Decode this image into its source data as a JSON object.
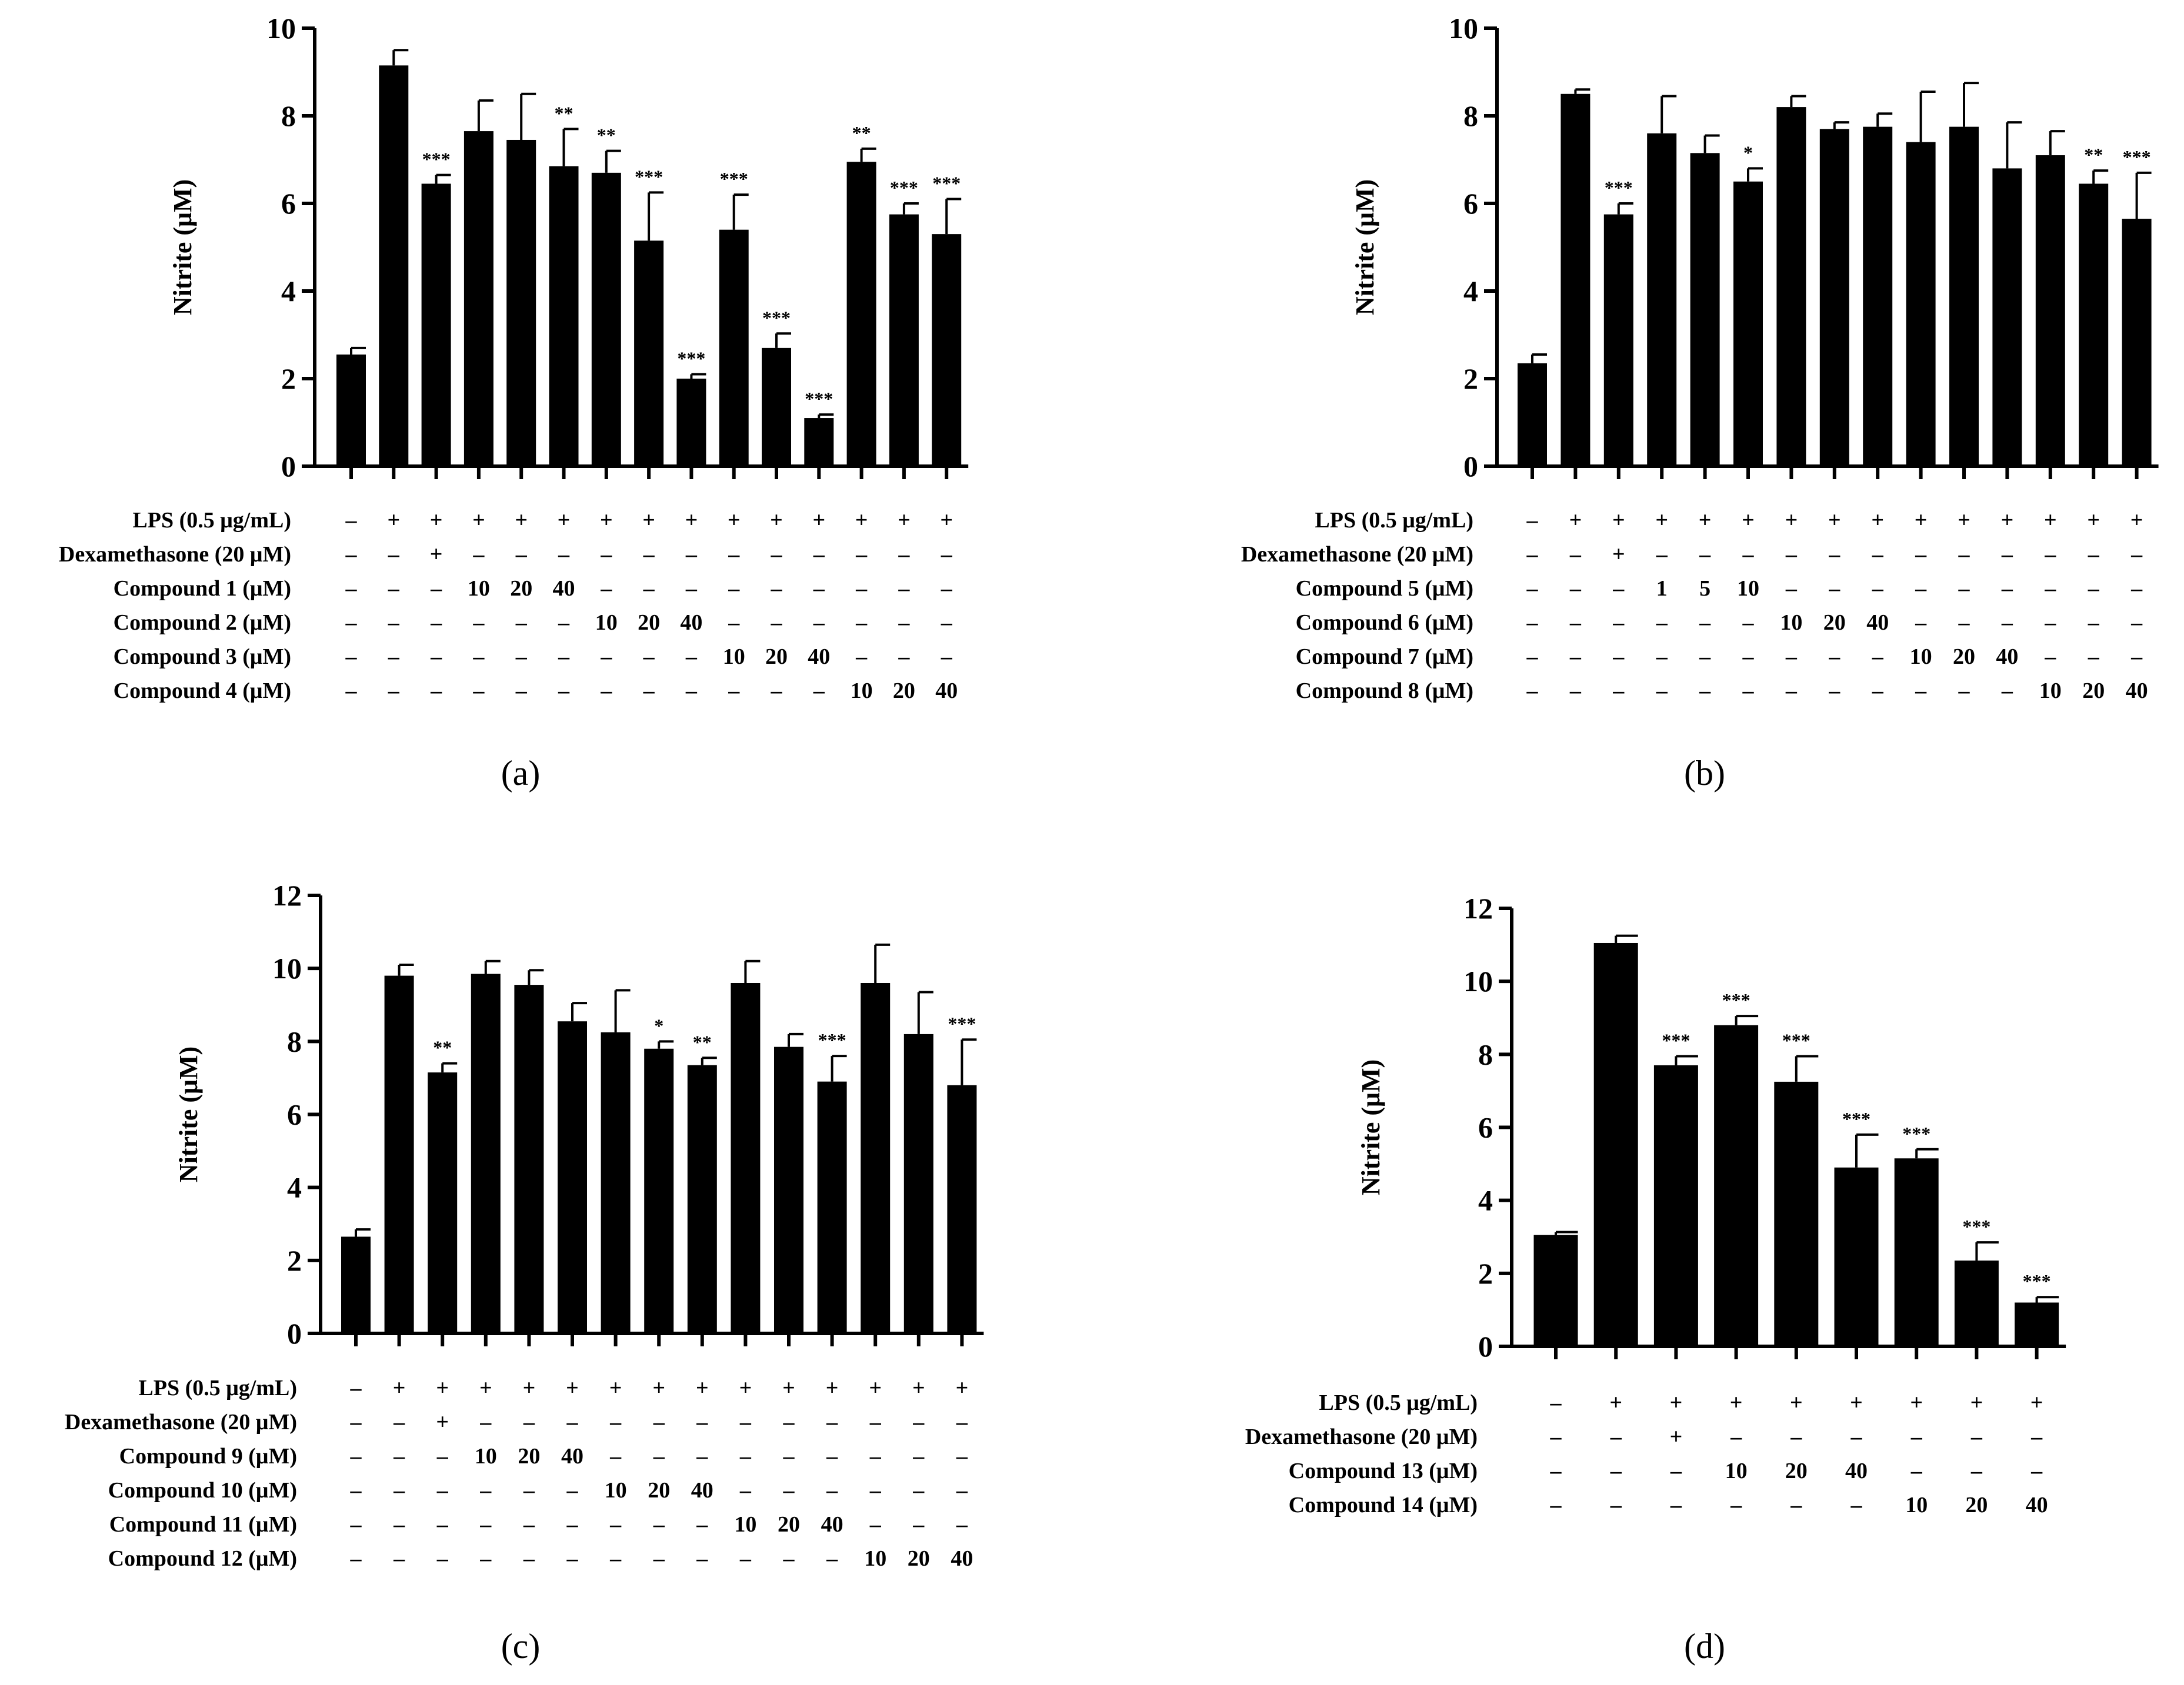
{
  "chart_data": [
    {
      "type": "bar",
      "panel_label": "(a)",
      "ylabel": "Nitrite (μM)",
      "ylim": [
        0,
        10
      ],
      "yticks": [
        "0",
        "2",
        "4",
        "6",
        "8",
        "10"
      ],
      "values": [
        2.55,
        9.15,
        6.45,
        7.65,
        7.45,
        6.85,
        6.7,
        5.15,
        2.0,
        5.4,
        2.7,
        1.1,
        6.95,
        5.75,
        5.3
      ],
      "errors": [
        0.15,
        0.35,
        0.2,
        0.7,
        1.05,
        0.85,
        0.5,
        1.1,
        0.1,
        0.8,
        0.33,
        0.08,
        0.3,
        0.25,
        0.8
      ],
      "significance": [
        "",
        "",
        "***",
        "",
        "",
        "**",
        "**",
        "***",
        "***",
        "***",
        "***",
        "***",
        "**",
        "***",
        "***"
      ],
      "rows": [
        {
          "label": "LPS (0.5 μg/mL)",
          "cells": [
            "–",
            "+",
            "+",
            "+",
            "+",
            "+",
            "+",
            "+",
            "+",
            "+",
            "+",
            "+",
            "+",
            "+",
            "+"
          ]
        },
        {
          "label": "Dexamethasone (20 μM)",
          "cells": [
            "–",
            "–",
            "+",
            "–",
            "–",
            "–",
            "–",
            "–",
            "–",
            "–",
            "–",
            "–",
            "–",
            "–",
            "–"
          ]
        },
        {
          "label": "Compound 1 (μM)",
          "cells": [
            "–",
            "–",
            "–",
            "10",
            "20",
            "40",
            "–",
            "–",
            "–",
            "–",
            "–",
            "–",
            "–",
            "–",
            "–"
          ]
        },
        {
          "label": "Compound 2 (μM)",
          "cells": [
            "–",
            "–",
            "–",
            "–",
            "–",
            "–",
            "10",
            "20",
            "40",
            "–",
            "–",
            "–",
            "–",
            "–",
            "–"
          ]
        },
        {
          "label": "Compound 3 (μM)",
          "cells": [
            "–",
            "–",
            "–",
            "–",
            "–",
            "–",
            "–",
            "–",
            "–",
            "10",
            "20",
            "40",
            "–",
            "–",
            "–"
          ]
        },
        {
          "label": "Compound 4 (μM)",
          "cells": [
            "–",
            "–",
            "–",
            "–",
            "–",
            "–",
            "–",
            "–",
            "–",
            "–",
            "–",
            "–",
            "10",
            "20",
            "40"
          ]
        }
      ]
    },
    {
      "type": "bar",
      "panel_label": "(b)",
      "ylabel": "Nitrite (μM)",
      "ylim": [
        0,
        10
      ],
      "yticks": [
        "0",
        "2",
        "4",
        "6",
        "8",
        "10"
      ],
      "values": [
        2.35,
        8.5,
        5.75,
        7.6,
        7.15,
        6.5,
        8.2,
        7.7,
        7.75,
        7.4,
        7.75,
        6.8,
        7.1,
        6.45,
        5.65
      ],
      "errors": [
        0.2,
        0.1,
        0.25,
        0.85,
        0.4,
        0.3,
        0.25,
        0.15,
        0.3,
        1.15,
        1.0,
        1.05,
        0.55,
        0.3,
        1.05
      ],
      "significance": [
        "",
        "",
        "***",
        "",
        "",
        "*",
        "",
        "",
        "",
        "",
        "",
        "",
        "",
        "**",
        "***"
      ],
      "rows": [
        {
          "label": "LPS (0.5 μg/mL)",
          "cells": [
            "–",
            "+",
            "+",
            "+",
            "+",
            "+",
            "+",
            "+",
            "+",
            "+",
            "+",
            "+",
            "+",
            "+",
            "+"
          ]
        },
        {
          "label": "Dexamethasone (20 μM)",
          "cells": [
            "–",
            "–",
            "+",
            "–",
            "–",
            "–",
            "–",
            "–",
            "–",
            "–",
            "–",
            "–",
            "–",
            "–",
            "–"
          ]
        },
        {
          "label": "Compound 5 (μM)",
          "cells": [
            "–",
            "–",
            "–",
            "1",
            "5",
            "10",
            "–",
            "–",
            "–",
            "–",
            "–",
            "–",
            "–",
            "–",
            "–"
          ]
        },
        {
          "label": "Compound 6 (μM)",
          "cells": [
            "–",
            "–",
            "–",
            "–",
            "–",
            "–",
            "10",
            "20",
            "40",
            "–",
            "–",
            "–",
            "–",
            "–",
            "–"
          ]
        },
        {
          "label": "Compound 7 (μM)",
          "cells": [
            "–",
            "–",
            "–",
            "–",
            "–",
            "–",
            "–",
            "–",
            "–",
            "10",
            "20",
            "40",
            "–",
            "–",
            "–"
          ]
        },
        {
          "label": "Compound 8 (μM)",
          "cells": [
            "–",
            "–",
            "–",
            "–",
            "–",
            "–",
            "–",
            "–",
            "–",
            "–",
            "–",
            "–",
            "10",
            "20",
            "40"
          ]
        }
      ]
    },
    {
      "type": "bar",
      "panel_label": "(c)",
      "ylabel": "Nitrite (μM)",
      "ylim": [
        0,
        12
      ],
      "yticks": [
        "0",
        "2",
        "4",
        "6",
        "8",
        "10",
        "12"
      ],
      "values": [
        2.65,
        9.8,
        7.15,
        9.85,
        9.55,
        8.55,
        8.25,
        7.8,
        7.35,
        9.6,
        7.85,
        6.9,
        9.6,
        8.2,
        6.8
      ],
      "errors": [
        0.2,
        0.3,
        0.25,
        0.35,
        0.4,
        0.5,
        1.15,
        0.2,
        0.2,
        0.6,
        0.35,
        0.7,
        1.05,
        1.15,
        1.25
      ],
      "significance": [
        "",
        "",
        "**",
        "",
        "",
        "",
        "",
        "*",
        "**",
        "",
        "",
        "***",
        "",
        "",
        "***"
      ],
      "rows": [
        {
          "label": "LPS (0.5 μg/mL)",
          "cells": [
            "–",
            "+",
            "+",
            "+",
            "+",
            "+",
            "+",
            "+",
            "+",
            "+",
            "+",
            "+",
            "+",
            "+",
            "+"
          ]
        },
        {
          "label": "Dexamethasone (20 μM)",
          "cells": [
            "–",
            "–",
            "+",
            "–",
            "–",
            "–",
            "–",
            "–",
            "–",
            "–",
            "–",
            "–",
            "–",
            "–",
            "–"
          ]
        },
        {
          "label": "Compound 9 (μM)",
          "cells": [
            "–",
            "–",
            "–",
            "10",
            "20",
            "40",
            "–",
            "–",
            "–",
            "–",
            "–",
            "–",
            "–",
            "–",
            "–"
          ]
        },
        {
          "label": "Compound 10 (μM)",
          "cells": [
            "–",
            "–",
            "–",
            "–",
            "–",
            "–",
            "10",
            "20",
            "40",
            "–",
            "–",
            "–",
            "–",
            "–",
            "–"
          ]
        },
        {
          "label": "Compound 11 (μM)",
          "cells": [
            "–",
            "–",
            "–",
            "–",
            "–",
            "–",
            "–",
            "–",
            "–",
            "10",
            "20",
            "40",
            "–",
            "–",
            "–"
          ]
        },
        {
          "label": "Compound 12 (μM)",
          "cells": [
            "–",
            "–",
            "–",
            "–",
            "–",
            "–",
            "–",
            "–",
            "–",
            "–",
            "–",
            "–",
            "10",
            "20",
            "40"
          ]
        }
      ]
    },
    {
      "type": "bar",
      "panel_label": "(d)",
      "ylabel": "Nitrite (μM)",
      "ylim": [
        0,
        12
      ],
      "yticks": [
        "0",
        "2",
        "4",
        "6",
        "8",
        "10",
        "12"
      ],
      "values": [
        3.05,
        11.05,
        7.7,
        8.8,
        7.25,
        4.9,
        5.15,
        2.35,
        1.2
      ],
      "errors": [
        0.08,
        0.2,
        0.25,
        0.25,
        0.7,
        0.9,
        0.25,
        0.5,
        0.15
      ],
      "significance": [
        "",
        "",
        "***",
        "***",
        "***",
        "***",
        "***",
        "***",
        "***"
      ],
      "rows": [
        {
          "label": "LPS (0.5 μg/mL)",
          "cells": [
            "–",
            "+",
            "+",
            "+",
            "+",
            "+",
            "+",
            "+",
            "+"
          ]
        },
        {
          "label": "Dexamethasone  (20 μM)",
          "cells": [
            "–",
            "–",
            "+",
            "–",
            "–",
            "–",
            "–",
            "–",
            "–"
          ]
        },
        {
          "label": "Compound 13 (μM)",
          "cells": [
            "–",
            "–",
            "–",
            "10",
            "20",
            "40",
            "–",
            "–",
            "–"
          ]
        },
        {
          "label": "Compound 14 (μM)",
          "cells": [
            "–",
            "–",
            "–",
            "–",
            "–",
            "–",
            "10",
            "20",
            "40"
          ]
        }
      ]
    }
  ]
}
